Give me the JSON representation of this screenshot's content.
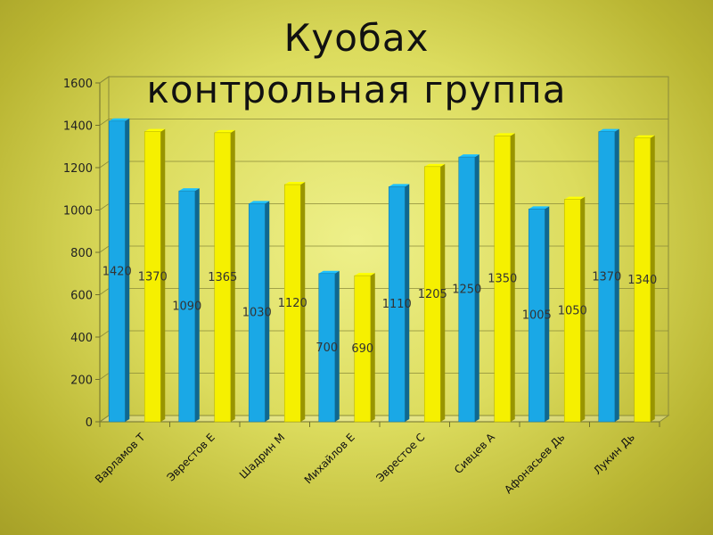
{
  "slide": {
    "title_line1": "Куобах",
    "title_line2": "контрольная группа"
  },
  "colors": {
    "series_a": "#1aa8e6",
    "series_b": "#f6f000"
  },
  "chart_data": {
    "type": "bar",
    "title": "Куобах контрольная группа",
    "categories": [
      "Варламов Т",
      "Эврестов Е",
      "Шадрин М",
      "Михайлов Е",
      "Эврестое С",
      "Сивцев А",
      "Афонасьев Дь",
      "Лукин Дь"
    ],
    "series": [
      {
        "values": [
          1420,
          1090,
          1030,
          700,
          1110,
          1250,
          1005,
          1370
        ]
      },
      {
        "values": [
          1370,
          1365,
          1120,
          690,
          1205,
          1350,
          1050,
          1340
        ]
      }
    ],
    "ylim": [
      0,
      1600
    ],
    "yticks": [
      "0",
      "200",
      "400",
      "600",
      "800",
      "1000",
      "1200",
      "1400",
      "1600"
    ],
    "grid": true,
    "legend": "none"
  }
}
